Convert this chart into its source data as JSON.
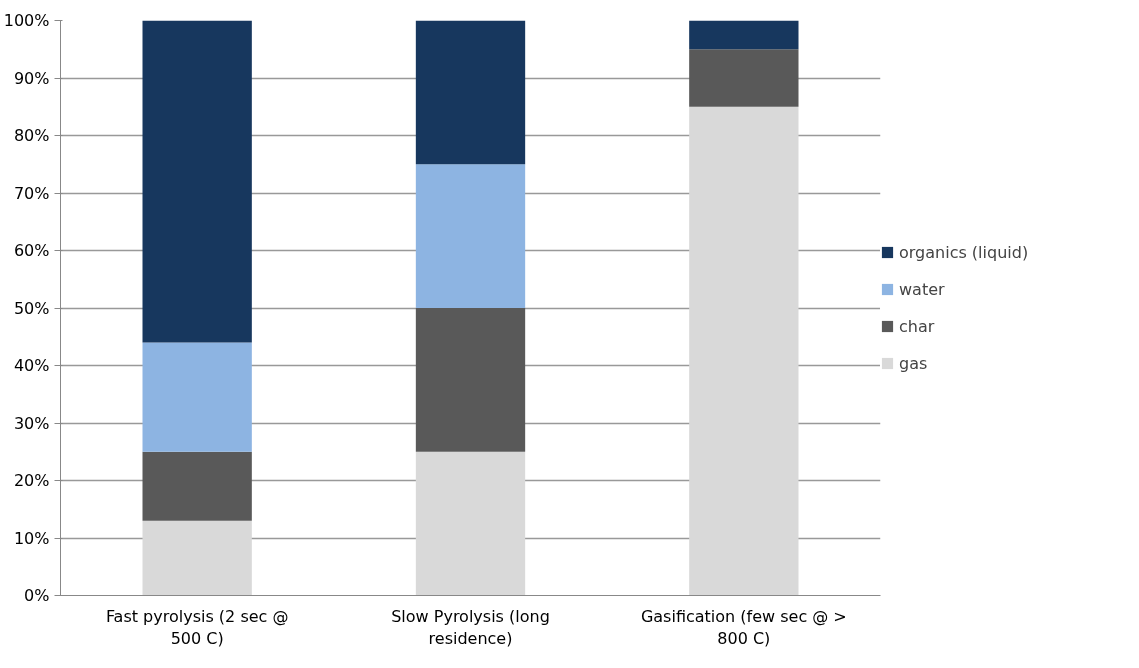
{
  "chart_data": {
    "type": "bar",
    "stacked": true,
    "categories": [
      "Fast pyrolysis (2 sec @ 500 C)",
      "Slow Pyrolysis (long residence)",
      "Gasification (few sec @ > 800 C)"
    ],
    "series": [
      {
        "name": "gas",
        "color": "#d9d9d9",
        "values": [
          13,
          25,
          85
        ]
      },
      {
        "name": "char",
        "color": "#595959",
        "values": [
          12,
          25,
          10
        ]
      },
      {
        "name": "water",
        "color": "#8db4e2",
        "values": [
          19,
          25,
          0
        ]
      },
      {
        "name": "organics (liquid)",
        "color": "#17375e",
        "values": [
          56,
          25,
          5
        ]
      }
    ],
    "ylim": [
      0,
      100
    ],
    "yticks": [
      {
        "value": 0,
        "label": "0%"
      },
      {
        "value": 10,
        "label": "10%"
      },
      {
        "value": 20,
        "label": "20%"
      },
      {
        "value": 30,
        "label": "30%"
      },
      {
        "value": 40,
        "label": "40%"
      },
      {
        "value": 50,
        "label": "50%"
      },
      {
        "value": 60,
        "label": "60%"
      },
      {
        "value": 70,
        "label": "70%"
      },
      {
        "value": 80,
        "label": "80%"
      },
      {
        "value": 90,
        "label": "90%"
      },
      {
        "value": 100,
        "label": "100%"
      }
    ],
    "grid": "y",
    "legend": "right"
  }
}
